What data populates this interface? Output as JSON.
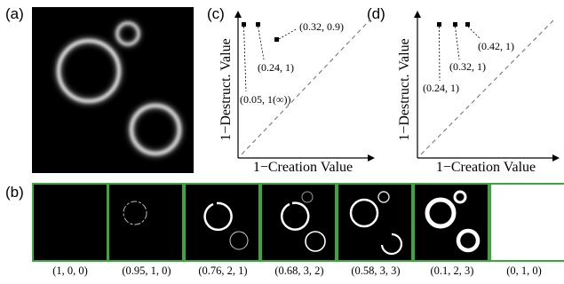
{
  "panels": {
    "a": {
      "label": "(a)"
    },
    "b": {
      "label": "(b)"
    },
    "c": {
      "label": "(c)"
    },
    "d": {
      "label": "(d)"
    }
  },
  "plots": {
    "c": {
      "xlabel": "1−Creation Value",
      "ylabel": "1−Destruct. Value",
      "points": [
        {
          "label": "(0.05, 1(∞))"
        },
        {
          "label": "(0.24, 1)"
        },
        {
          "label": "(0.32, 0.9)"
        }
      ]
    },
    "d": {
      "xlabel": "1−Creation Value",
      "ylabel": "1−Destruct. Value",
      "points": [
        {
          "label": "(0.24, 1)"
        },
        {
          "label": "(0.32, 1)"
        },
        {
          "label": "(0.42, 1)"
        }
      ]
    }
  },
  "filtration": {
    "captions": [
      "(1, 0, 0)",
      "(0.95, 1, 0)",
      "(0.76, 2, 1)",
      "(0.68, 3, 2)",
      "(0.58, 3, 3)",
      "(0.1, 2, 3)",
      "(0, 1, 0)"
    ]
  },
  "colors": {
    "frame": "#3aa83a",
    "image_bg": "#000000",
    "ring": "#ffffff"
  }
}
